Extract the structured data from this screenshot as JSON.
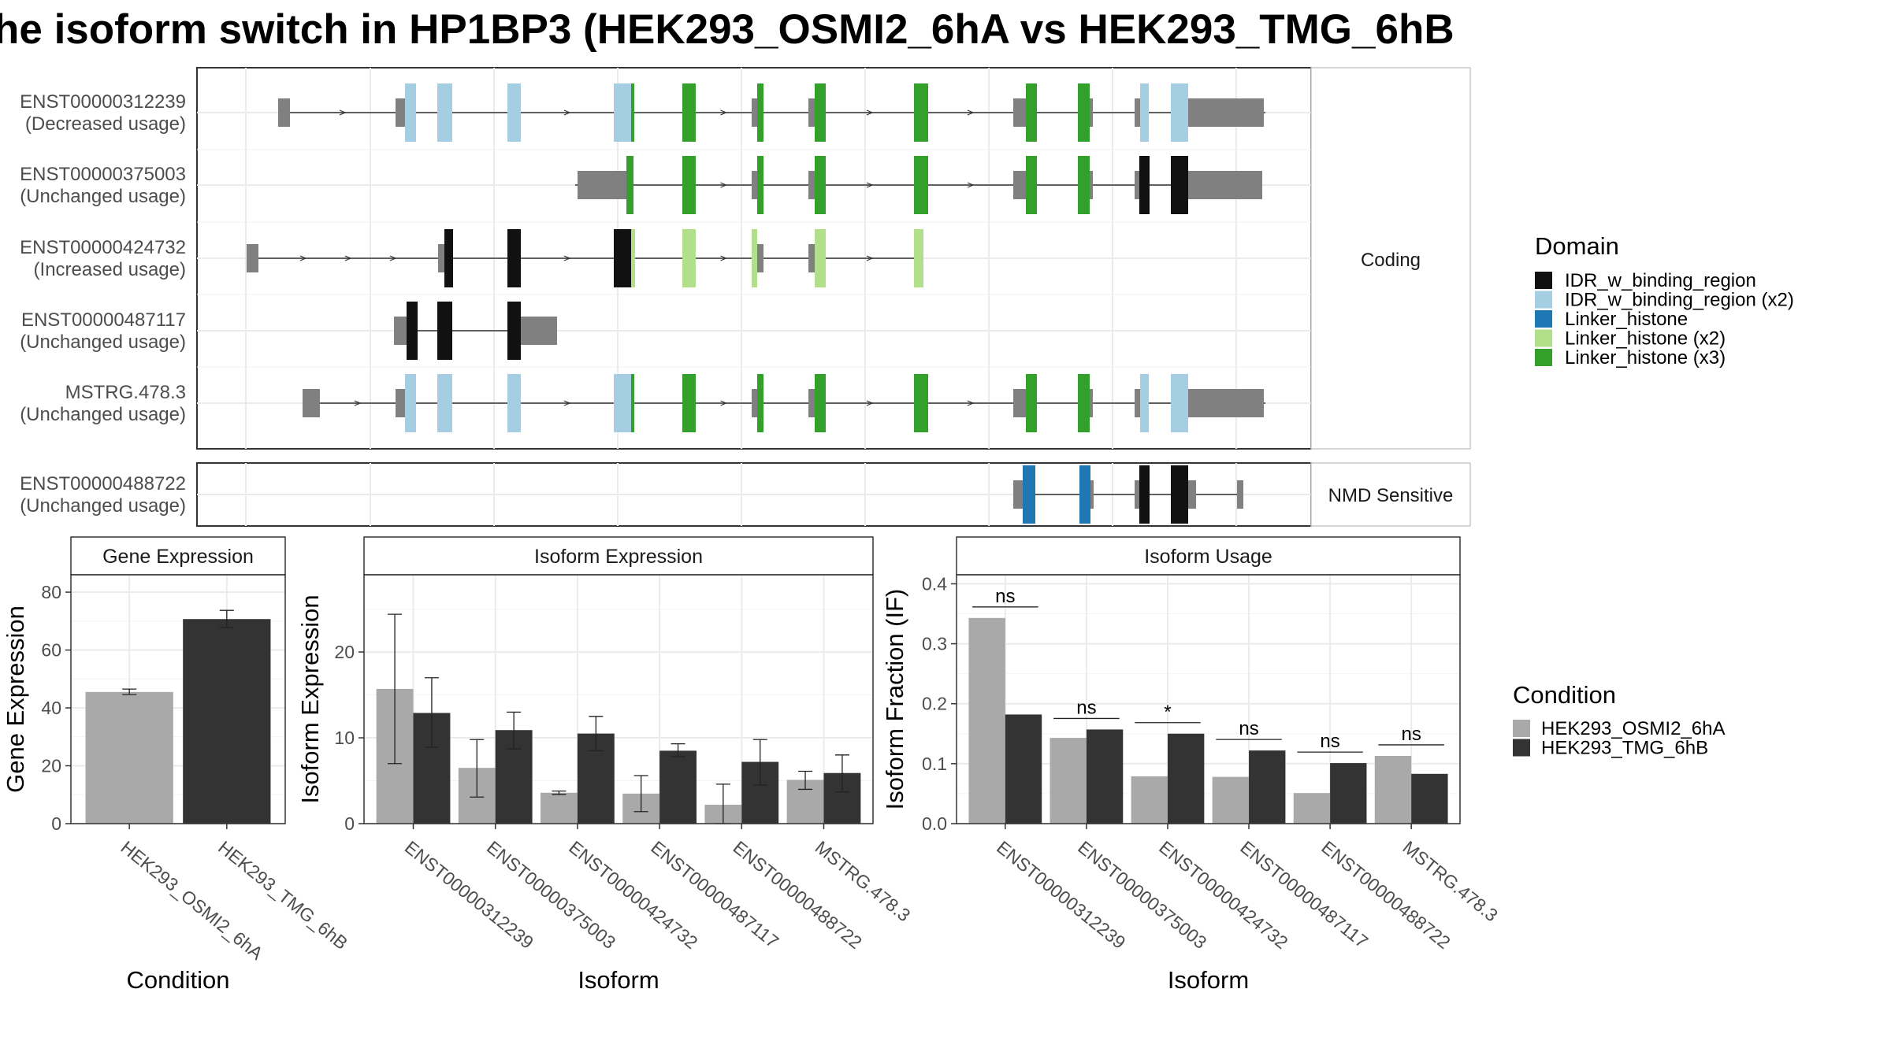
{
  "title": "he isoform switch in HP1BP3 (HEK293_OSMI2_6hA vs HEK293_TMG_6hB",
  "structure": {
    "transcripts": [
      {
        "id": "ENST00000312239",
        "usage": "(Decreased usage)",
        "section": "Coding"
      },
      {
        "id": "ENST00000375003",
        "usage": "(Unchanged usage)",
        "section": "Coding"
      },
      {
        "id": "ENST00000424732",
        "usage": "(Increased usage)",
        "section": "Coding"
      },
      {
        "id": "ENST00000487117",
        "usage": "(Unchanged usage)",
        "section": "Coding"
      },
      {
        "id": "MSTRG.478.3",
        "usage": "(Unchanged usage)",
        "section": "Coding"
      },
      {
        "id": "ENST00000488722",
        "usage": "(Unchanged usage)",
        "section": "NMD Sensitive"
      }
    ],
    "facets": [
      "Coding",
      "NMD Sensitive"
    ],
    "legend_title": "Domain",
    "legend": [
      {
        "label": "IDR_w_binding_region",
        "color": "#111111"
      },
      {
        "label": "IDR_w_binding_region (x2)",
        "color": "#a6cee3"
      },
      {
        "label": "Linker_histone",
        "color": "#1f78b4"
      },
      {
        "label": "Linker_histone (x2)",
        "color": "#b2df8a"
      },
      {
        "label": "Linker_histone (x3)",
        "color": "#33a02c"
      }
    ]
  },
  "colors": {
    "condition_a": "#a9a9a9",
    "condition_b": "#333333",
    "utr": "#808080",
    "intron": "#333333",
    "panel_border": "#333333",
    "strip_bg": "#ffffff",
    "grid": "#ebebeb"
  },
  "condition_legend": {
    "title": "Condition",
    "items": [
      "HEK293_OSMI2_6hA",
      "HEK293_TMG_6hB"
    ]
  },
  "chart_data": [
    {
      "type": "bar",
      "title": "Gene Expression",
      "xlabel": "Condition",
      "ylabel": "Gene Expression",
      "categories": [
        "HEK293_OSMI2_6hA",
        "HEK293_TMG_6hB"
      ],
      "values": [
        45.5,
        70.7
      ],
      "error_low": [
        44.6,
        67.8
      ],
      "error_high": [
        46.5,
        73.7
      ],
      "yticks": [
        0,
        20,
        40,
        60,
        80
      ],
      "ylim": [
        0,
        86
      ]
    },
    {
      "type": "bar",
      "title": "Isoform Expression",
      "xlabel": "Isoform",
      "ylabel": "Isoform Expression",
      "categories": [
        "ENST00000312239",
        "ENST00000375003",
        "ENST00000424732",
        "ENST00000487117",
        "ENST00000488722",
        "MSTRG.478.3"
      ],
      "series": [
        {
          "name": "HEK293_OSMI2_6hA",
          "values": [
            15.7,
            6.5,
            3.6,
            3.5,
            2.2,
            5.1
          ],
          "error_low": [
            7.0,
            3.1,
            3.4,
            1.4,
            0.0,
            4.0
          ],
          "error_high": [
            24.4,
            9.8,
            3.8,
            5.6,
            4.6,
            6.1
          ]
        },
        {
          "name": "HEK293_TMG_6hB",
          "values": [
            12.9,
            10.9,
            10.5,
            8.5,
            7.2,
            5.9
          ],
          "error_low": [
            8.9,
            8.7,
            8.5,
            7.8,
            4.5,
            3.7
          ],
          "error_high": [
            17.0,
            13.0,
            12.5,
            9.3,
            9.8,
            8.0
          ]
        }
      ],
      "yticks": [
        0,
        10,
        20
      ],
      "ylim": [
        0,
        29
      ]
    },
    {
      "type": "bar",
      "title": "Isoform Usage",
      "xlabel": "Isoform",
      "ylabel": "Isoform Fraction (IF)",
      "categories": [
        "ENST00000312239",
        "ENST00000375003",
        "ENST00000424732",
        "ENST00000487117",
        "ENST00000488722",
        "MSTRG.478.3"
      ],
      "series": [
        {
          "name": "HEK293_OSMI2_6hA",
          "values": [
            0.343,
            0.143,
            0.079,
            0.078,
            0.051,
            0.113
          ]
        },
        {
          "name": "HEK293_TMG_6hB",
          "values": [
            0.182,
            0.157,
            0.15,
            0.122,
            0.101,
            0.083
          ]
        }
      ],
      "significance": [
        "ns",
        "ns",
        "*",
        "ns",
        "ns",
        "ns"
      ],
      "yticks": [
        "0.0",
        "0.1",
        "0.2",
        "0.3",
        "0.4"
      ],
      "ylim": [
        0,
        0.415
      ]
    }
  ]
}
